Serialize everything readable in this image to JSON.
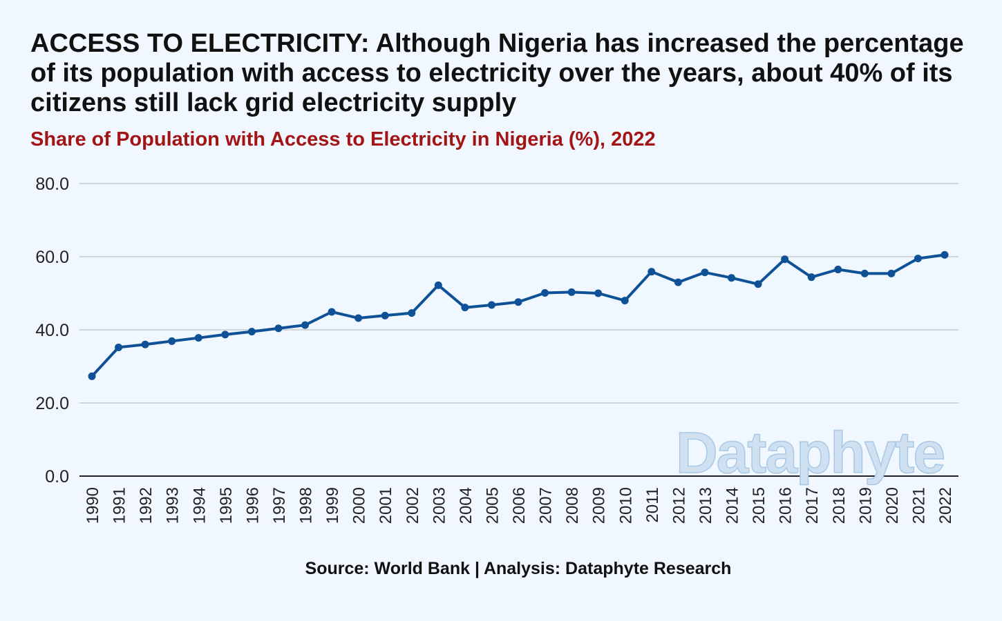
{
  "title": "ACCESS TO ELECTRICITY: Although Nigeria has increased the percentage of its population with access to electricity over the years, about 40% of its citizens still  lack grid electricity supply",
  "subtitle": "Share of Population with Access to Electricity in Nigeria (%), 2022",
  "source": "Source: World Bank | Analysis: Dataphyte Research",
  "watermark": "Dataphyte",
  "colors": {
    "background": "#f0f7ff",
    "line": "#0f5196",
    "subtitle": "#a31515",
    "grid": "#c4c9ce"
  },
  "chart_data": {
    "type": "line",
    "x": [
      "1990",
      "1991",
      "1992",
      "1993",
      "1994",
      "1995",
      "1996",
      "1997",
      "1998",
      "1999",
      "2000",
      "2001",
      "2002",
      "2003",
      "2004",
      "2005",
      "2006",
      "2007",
      "2008",
      "2009",
      "2010",
      "2011",
      "2012",
      "2013",
      "2014",
      "2015",
      "2016",
      "2017",
      "2018",
      "2019",
      "2020",
      "2021",
      "2022"
    ],
    "values": [
      27.3,
      35.2,
      36.0,
      36.9,
      37.8,
      38.7,
      39.5,
      40.4,
      41.3,
      44.9,
      43.2,
      43.9,
      44.6,
      52.2,
      46.1,
      46.8,
      47.6,
      50.1,
      50.3,
      50.0,
      48.0,
      55.9,
      53.0,
      55.7,
      54.2,
      52.5,
      59.3,
      54.4,
      56.5,
      55.4,
      55.4,
      59.5,
      60.5
    ],
    "yticks": [
      "0.0",
      "20.0",
      "40.0",
      "60.0",
      "80.0"
    ],
    "ylim": [
      0,
      80
    ],
    "grid": true
  }
}
